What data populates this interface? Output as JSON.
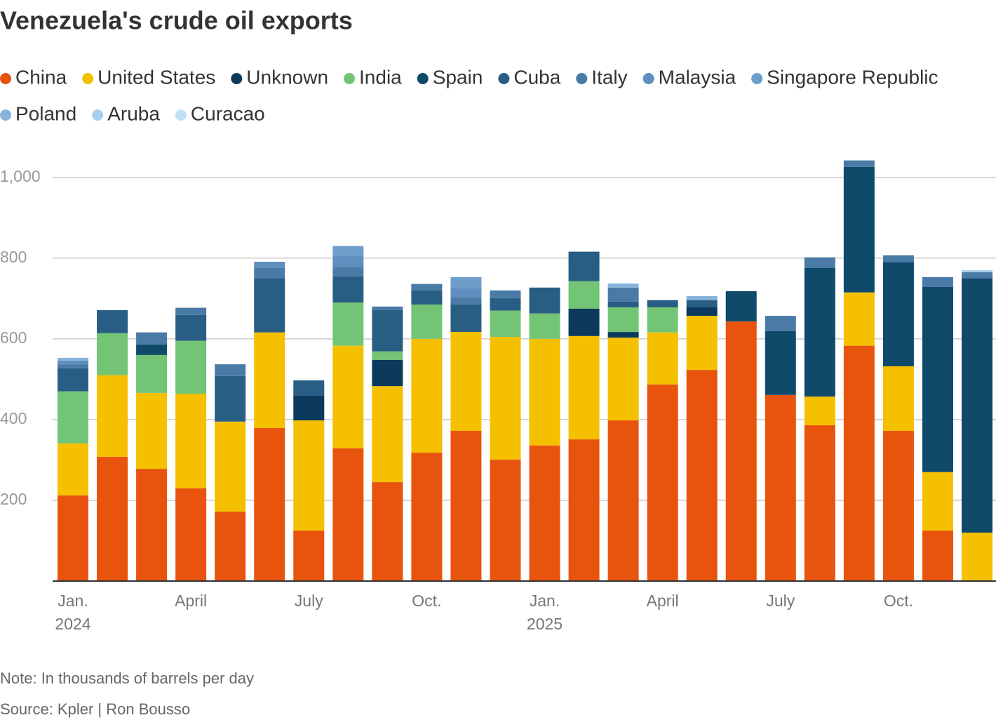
{
  "chart_data": {
    "type": "stacked_bar",
    "title": "Venezuela's crude oil exports",
    "note": "Note: In thousands of barrels per day",
    "source": "Source: Kpler | Ron Bousso",
    "categories": [
      "Jan.",
      null,
      null,
      "April",
      null,
      null,
      "July",
      null,
      null,
      "Oct.",
      null,
      null,
      "Jan.",
      null,
      null,
      "April",
      null,
      null,
      "July",
      null,
      null,
      "Oct.",
      null,
      null
    ],
    "category_years": [
      "2024",
      null,
      null,
      null,
      null,
      null,
      null,
      null,
      null,
      null,
      null,
      null,
      "2025",
      null,
      null,
      null,
      null,
      null,
      null,
      null,
      null,
      null,
      null,
      null
    ],
    "ylim": [
      0,
      1050
    ],
    "yticks": [
      200,
      400,
      600,
      800,
      {
        "value": 1000,
        "label": "1,000"
      }
    ],
    "grid": true,
    "legend": "top",
    "series": [
      {
        "name": "China",
        "color": "#e8540e",
        "values": [
          212,
          308,
          278,
          230,
          172,
          379,
          125,
          329,
          245,
          318,
          372,
          301,
          336,
          351,
          398,
          487,
          523,
          643,
          461,
          386,
          583,
          372,
          125,
          0
        ]
      },
      {
        "name": "United States",
        "color": "#f5c000",
        "values": [
          129,
          202,
          188,
          234,
          223,
          237,
          273,
          254,
          238,
          282,
          245,
          304,
          264,
          256,
          205,
          129,
          134,
          0,
          0,
          71,
          132,
          160,
          145,
          120
        ]
      },
      {
        "name": "Unknown",
        "color": "#0b3a5c",
        "values": [
          0,
          0,
          0,
          0,
          0,
          0,
          61,
          0,
          65,
          0,
          0,
          0,
          0,
          68,
          14,
          0,
          21,
          0,
          0,
          0,
          0,
          0,
          0,
          0
        ]
      },
      {
        "name": "India",
        "color": "#73c475",
        "values": [
          129,
          104,
          94,
          131,
          0,
          0,
          0,
          107,
          21,
          85,
          0,
          65,
          63,
          68,
          61,
          62,
          0,
          0,
          0,
          0,
          0,
          0,
          0,
          0
        ]
      },
      {
        "name": "Spain",
        "color": "#0f4a6b",
        "values": [
          0,
          0,
          26,
          0,
          0,
          0,
          0,
          0,
          0,
          0,
          0,
          0,
          0,
          0,
          0,
          0,
          0,
          75,
          158,
          319,
          311,
          258,
          459,
          630
        ]
      },
      {
        "name": "Cuba",
        "color": "#295e84",
        "values": [
          57,
          57,
          0,
          64,
          113,
          134,
          38,
          65,
          102,
          35,
          68,
          31,
          64,
          73,
          14,
          18,
          18,
          0,
          0,
          0,
          0,
          0,
          0,
          0
        ]
      },
      {
        "name": "Italy",
        "color": "#4a7aa6",
        "values": [
          10,
          0,
          30,
          18,
          29,
          26,
          0,
          22,
          9,
          16,
          18,
          19,
          0,
          0,
          35,
          0,
          0,
          0,
          38,
          26,
          16,
          17,
          24,
          15
        ]
      },
      {
        "name": "Malaysia",
        "color": "#5f8fbf",
        "values": [
          9,
          0,
          0,
          0,
          0,
          15,
          0,
          28,
          0,
          0,
          22,
          0,
          0,
          0,
          0,
          0,
          0,
          0,
          0,
          0,
          0,
          0,
          0,
          0
        ]
      },
      {
        "name": "Singapore Republic",
        "color": "#6d9ecb",
        "values": [
          0,
          0,
          0,
          0,
          0,
          0,
          0,
          25,
          0,
          0,
          28,
          0,
          0,
          0,
          0,
          0,
          0,
          0,
          0,
          0,
          0,
          0,
          0,
          0
        ]
      },
      {
        "name": "Poland",
        "color": "#85b3dc",
        "values": [
          7,
          0,
          0,
          0,
          0,
          0,
          0,
          0,
          0,
          0,
          0,
          0,
          0,
          0,
          10,
          0,
          10,
          0,
          0,
          0,
          0,
          0,
          0,
          0
        ]
      },
      {
        "name": "Aruba",
        "color": "#a6cfee",
        "values": [
          0,
          0,
          0,
          0,
          0,
          0,
          0,
          0,
          0,
          0,
          0,
          0,
          0,
          0,
          0,
          0,
          0,
          0,
          0,
          0,
          0,
          0,
          0,
          5
        ]
      },
      {
        "name": "Curacao",
        "color": "#bfe0f5",
        "values": [
          0,
          0,
          0,
          0,
          0,
          0,
          0,
          0,
          0,
          0,
          0,
          0,
          0,
          0,
          0,
          0,
          0,
          0,
          0,
          0,
          0,
          0,
          0,
          0
        ]
      }
    ]
  }
}
